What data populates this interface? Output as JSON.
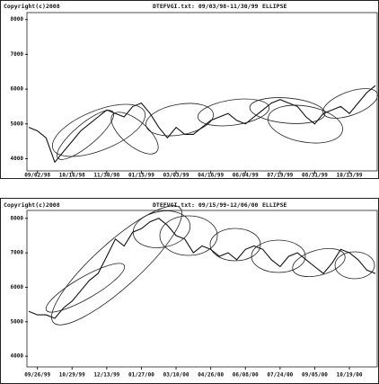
{
  "chart_data": [
    {
      "type": "line",
      "copyright": "Copyright(c)2008",
      "title": "DTEFVGI.txt: 09/03/98-11/30/99",
      "method": "ELLIPSE",
      "categories": [
        null,
        "09/02/98",
        null,
        null,
        null,
        "10/16/98",
        null,
        null,
        null,
        "11/30/98",
        null,
        null,
        null,
        "01/15/99",
        null,
        null,
        null,
        "03/03/99",
        null,
        null,
        null,
        "04/16/99",
        null,
        null,
        null,
        "06/04/99",
        null,
        null,
        null,
        "07/19/99",
        null,
        null,
        null,
        "08/31/99",
        null,
        null,
        null,
        "10/13/99",
        null,
        null,
        null
      ],
      "values": [
        4900,
        4800,
        4600,
        3900,
        4200,
        4500,
        4800,
        5000,
        5200,
        5400,
        5300,
        5200,
        5500,
        5600,
        5300,
        4900,
        4600,
        4900,
        4700,
        4700,
        4900,
        5100,
        5200,
        5300,
        5100,
        5000,
        5200,
        5400,
        5600,
        5700,
        5600,
        5500,
        5200,
        5000,
        5300,
        5400,
        5500,
        5300,
        5600,
        5900,
        6100
      ],
      "color": "#111111",
      "ylim": [
        3650,
        8200
      ],
      "yticks": [
        4000,
        5000,
        6000,
        7000,
        8000
      ]
    },
    {
      "type": "line",
      "copyright": "Copyright(c)2008",
      "title": "DTEFVGI.txt: 09/15/99-12/06/00",
      "method": "ELLIPSE",
      "categories": [
        null,
        "09/26/99",
        null,
        null,
        null,
        "10/29/99",
        null,
        null,
        null,
        "12/13/99",
        null,
        null,
        null,
        "01/27/00",
        null,
        null,
        null,
        "03/10/00",
        null,
        null,
        null,
        "04/26/00",
        null,
        null,
        null,
        "06/08/00",
        null,
        null,
        null,
        "07/24/00",
        null,
        null,
        null,
        "09/05/00",
        null,
        null,
        null,
        "10/19/00",
        null,
        null,
        null
      ],
      "values": [
        5300,
        5200,
        5200,
        5100,
        5400,
        5600,
        5900,
        6200,
        6400,
        6900,
        7400,
        7200,
        7600,
        7700,
        7900,
        8000,
        7800,
        7500,
        7400,
        7000,
        7200,
        7100,
        6900,
        7000,
        6800,
        7100,
        7200,
        7100,
        6800,
        6600,
        6900,
        7000,
        6800,
        6600,
        6400,
        6700,
        7100,
        7000,
        6800,
        6500,
        6400
      ],
      "color": "#111111",
      "ylim": [
        3690,
        8230
      ],
      "yticks": [
        4000,
        5000,
        6000,
        7000,
        8000
      ]
    }
  ]
}
